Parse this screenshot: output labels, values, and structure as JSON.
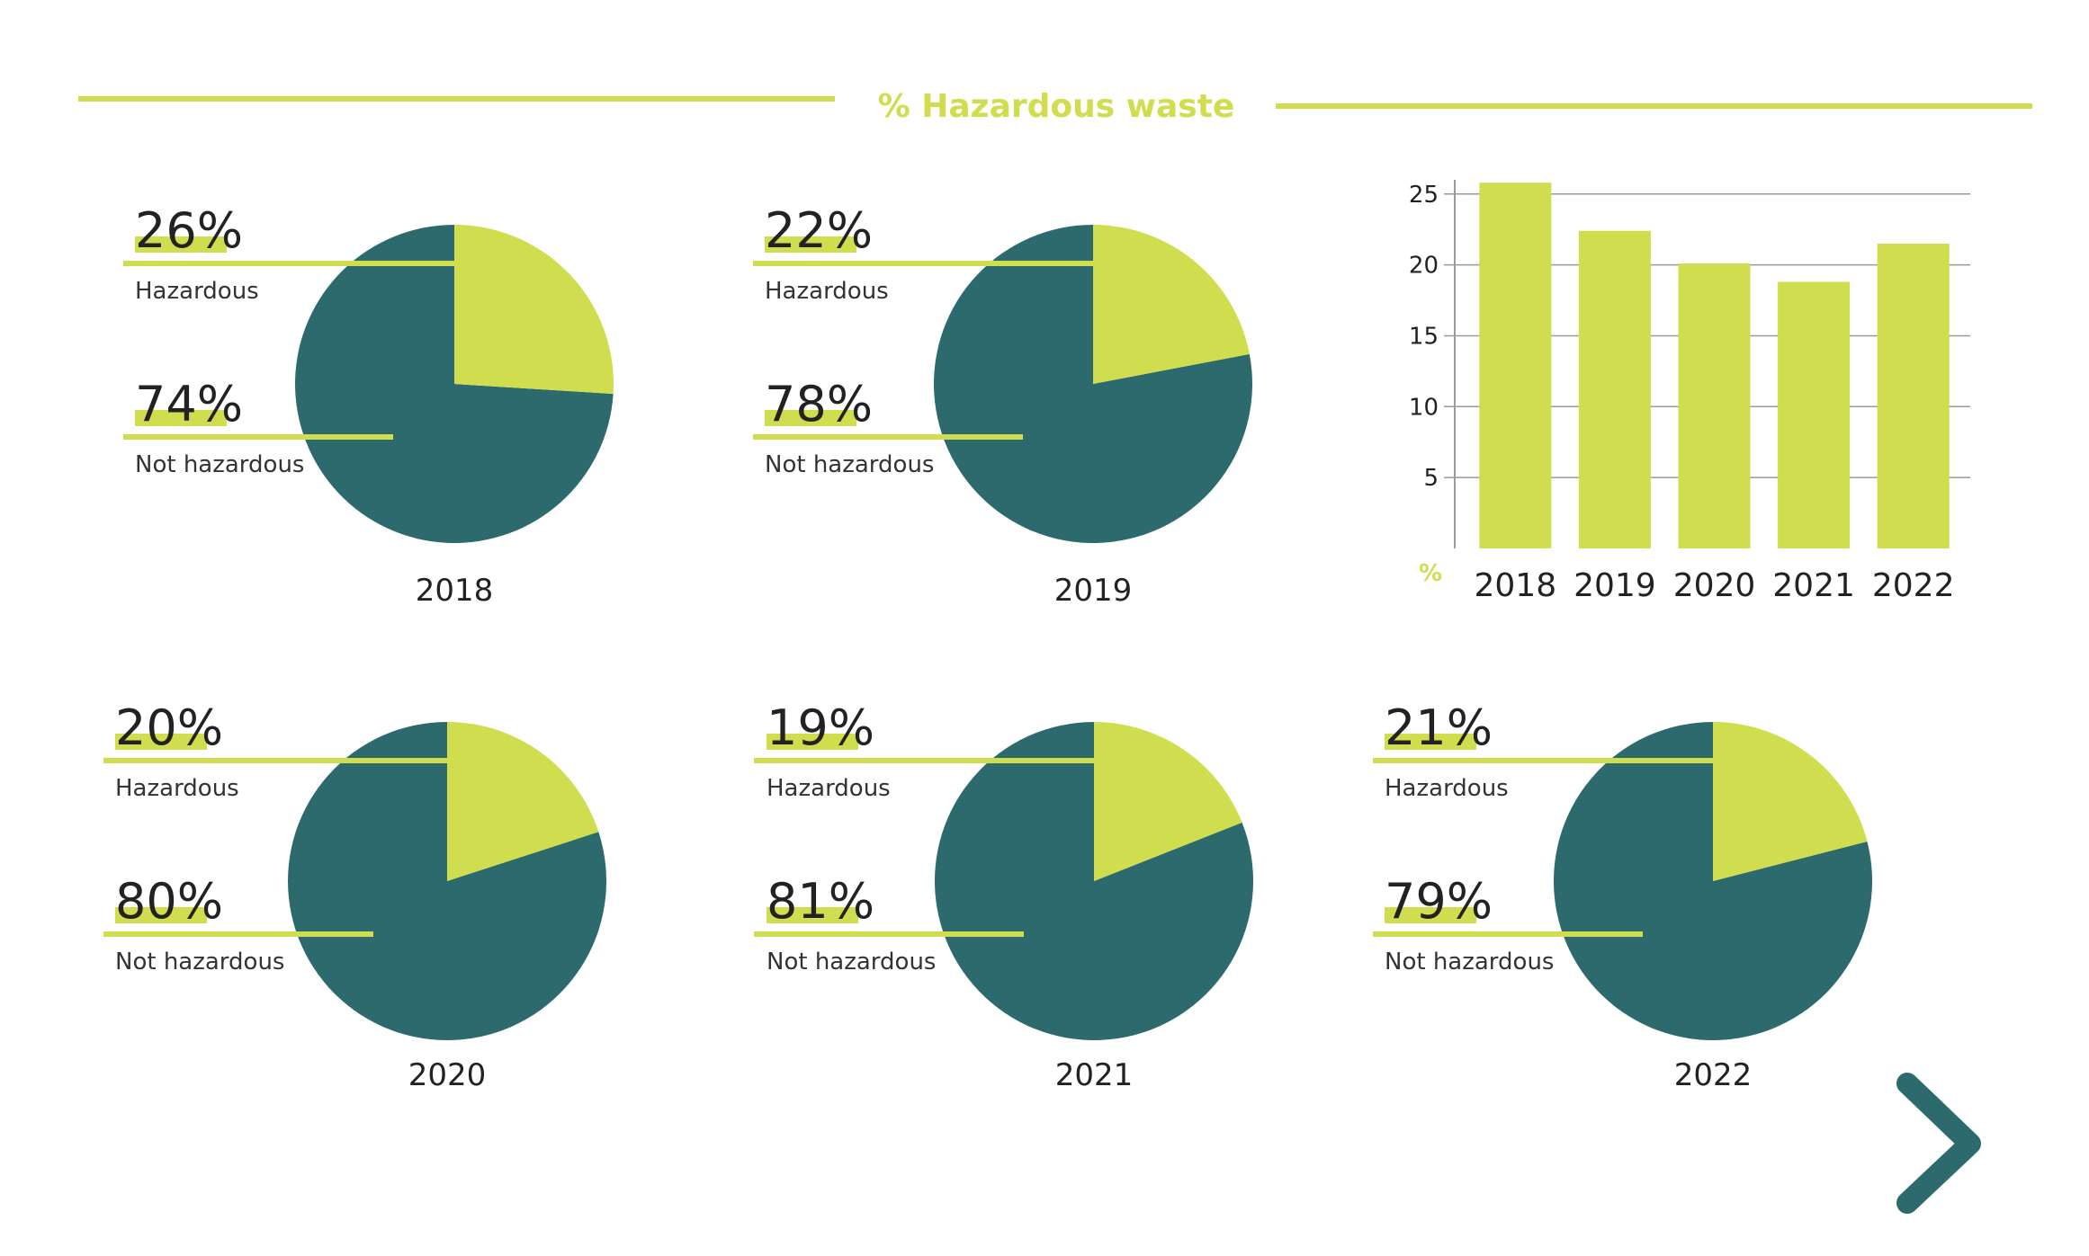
{
  "page": {
    "title": "% Hazardous waste",
    "colors": {
      "accent": "#cfdd4e",
      "dark": "#2d6a6e",
      "text": "#222222",
      "subtext": "#333333",
      "background": "#ffffff"
    },
    "next_icon": "chevron-right-icon"
  },
  "chart_data": [
    {
      "type": "pie",
      "year": "2018",
      "categories": [
        "Hazardous",
        "Not hazardous"
      ],
      "values": [
        26,
        74
      ],
      "labels": [
        "26%",
        "74%"
      ]
    },
    {
      "type": "pie",
      "year": "2019",
      "categories": [
        "Hazardous",
        "Not hazardous"
      ],
      "values": [
        22,
        78
      ],
      "labels": [
        "22%",
        "78%"
      ]
    },
    {
      "type": "bar",
      "categories": [
        "2018",
        "2019",
        "2020",
        "2021",
        "2022"
      ],
      "values": [
        25.8,
        22.4,
        20.1,
        18.8,
        21.5
      ],
      "ylabel": "%",
      "ylim": [
        0,
        26
      ],
      "yticks": [
        5,
        10,
        15,
        20,
        25
      ],
      "grid": true
    },
    {
      "type": "pie",
      "year": "2020",
      "categories": [
        "Hazardous",
        "Not hazardous"
      ],
      "values": [
        20,
        80
      ],
      "labels": [
        "20%",
        "80%"
      ]
    },
    {
      "type": "pie",
      "year": "2021",
      "categories": [
        "Hazardous",
        "Not hazardous"
      ],
      "values": [
        19,
        81
      ],
      "labels": [
        "19%",
        "81%"
      ]
    },
    {
      "type": "pie",
      "year": "2022",
      "categories": [
        "Hazardous",
        "Not hazardous"
      ],
      "values": [
        21,
        79
      ],
      "labels": [
        "21%",
        "79%"
      ]
    }
  ]
}
